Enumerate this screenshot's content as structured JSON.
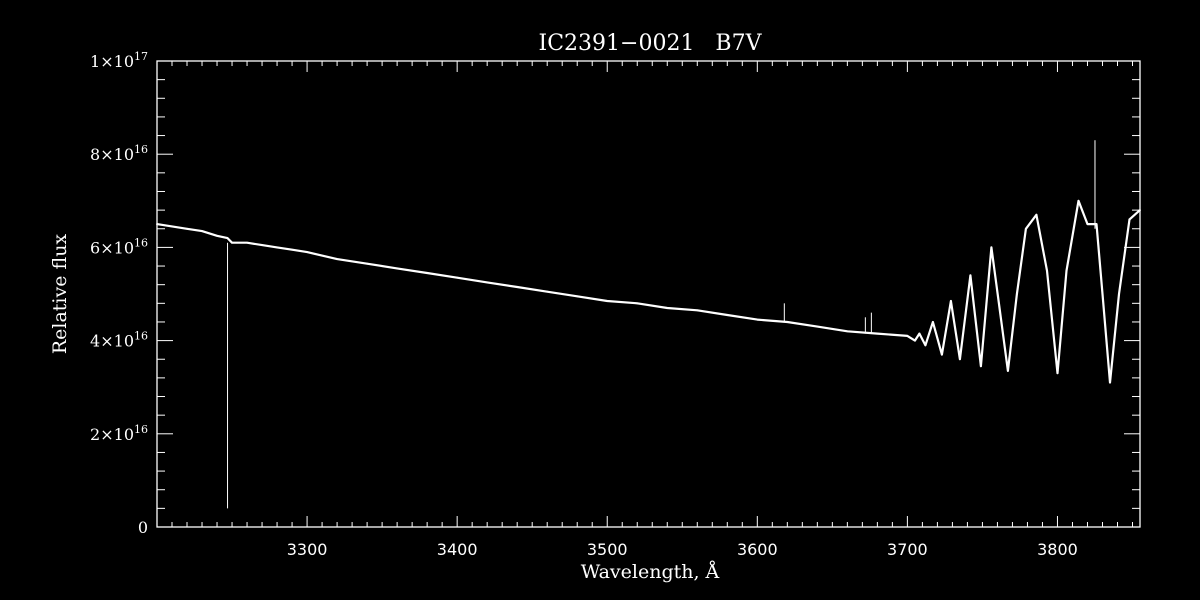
{
  "chart_data": {
    "type": "line",
    "title": "IC2391−0021   B7V",
    "xlabel": "Wavelength, Å",
    "ylabel": "Relative flux",
    "xlim": [
      3200,
      3855
    ],
    "ylim": [
      0,
      1e+17
    ],
    "x_ticks": [
      {
        "value": 3300,
        "label": "3300"
      },
      {
        "value": 3400,
        "label": "3400"
      },
      {
        "value": 3500,
        "label": "3500"
      },
      {
        "value": 3600,
        "label": "3600"
      },
      {
        "value": 3700,
        "label": "3700"
      },
      {
        "value": 3800,
        "label": "3800"
      }
    ],
    "y_ticks": [
      {
        "value": 0,
        "mantissa": "0",
        "exponent": ""
      },
      {
        "value": 2e+16,
        "mantissa": "2×10",
        "exponent": "16"
      },
      {
        "value": 4e+16,
        "mantissa": "4×10",
        "exponent": "16"
      },
      {
        "value": 6e+16,
        "mantissa": "6×10",
        "exponent": "16"
      },
      {
        "value": 8e+16,
        "mantissa": "8×10",
        "exponent": "16"
      },
      {
        "value": 1e+17,
        "mantissa": "1×10",
        "exponent": "17"
      }
    ],
    "series": [
      {
        "color": "#ffffff",
        "x": [
          3200,
          3210,
          3220,
          3230,
          3240,
          3247,
          3250,
          3260,
          3270,
          3280,
          3290,
          3300,
          3320,
          3340,
          3360,
          3380,
          3400,
          3420,
          3440,
          3460,
          3480,
          3500,
          3520,
          3540,
          3560,
          3580,
          3600,
          3620,
          3640,
          3660,
          3680,
          3700,
          3705,
          3708,
          3712,
          3717,
          3723,
          3729,
          3735,
          3742,
          3749,
          3756,
          3761,
          3767,
          3773,
          3779,
          3786,
          3793,
          3800,
          3806,
          3814,
          3820,
          3826,
          3830,
          3835,
          3841,
          3848,
          3855
        ],
        "y": [
          6.5e+16,
          6.45e+16,
          6.4e+16,
          6.35e+16,
          6.25e+16,
          6.2e+16,
          6.1e+16,
          6.1e+16,
          6.05e+16,
          6e+16,
          5.95e+16,
          5.9e+16,
          5.75e+16,
          5.65e+16,
          5.55e+16,
          5.45e+16,
          5.35e+16,
          5.25e+16,
          5.15e+16,
          5.05e+16,
          4.95e+16,
          4.85e+16,
          4.8e+16,
          4.7e+16,
          4.65e+16,
          4.55e+16,
          4.45e+16,
          4.4e+16,
          4.3e+16,
          4.2e+16,
          4.15e+16,
          4.1e+16,
          4e+16,
          4.15e+16,
          3.9e+16,
          4.4e+16,
          3.7e+16,
          4.85e+16,
          3.6e+16,
          5.4e+16,
          3.45e+16,
          6e+16,
          4.8e+16,
          3.35e+16,
          5e+16,
          6.4e+16,
          6.7e+16,
          5.5e+16,
          3.3e+16,
          5.5e+16,
          7e+16,
          6.5e+16,
          6.5e+16,
          5e+16,
          3.1e+16,
          5e+16,
          6.6e+16,
          6.8e+16
        ]
      }
    ],
    "spikes": [
      {
        "x": 3247,
        "y_top": 6.1e+16,
        "y_bottom": 4000000000000000.0
      },
      {
        "x": 3618,
        "y_top": 4.8e+16,
        "y_bottom": 4.4e+16
      },
      {
        "x": 3672,
        "y_top": 4.5e+16,
        "y_bottom": 4.15e+16
      },
      {
        "x": 3676,
        "y_top": 4.6e+16,
        "y_bottom": 4.15e+16
      },
      {
        "x": 3825,
        "y_top": 8.3e+16,
        "y_bottom": 6.4e+16
      }
    ]
  }
}
